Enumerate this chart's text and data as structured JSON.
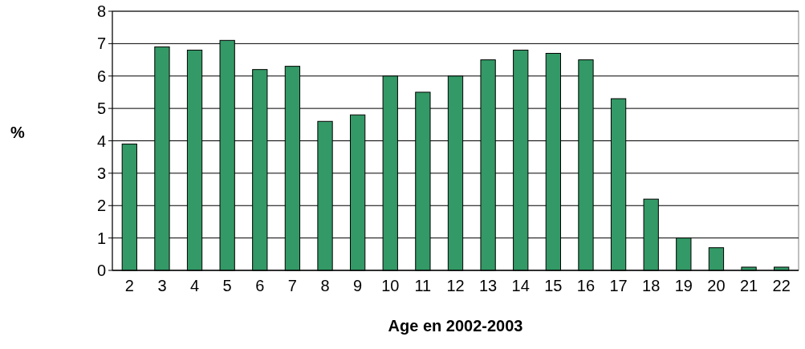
{
  "chart_data": {
    "type": "bar",
    "xlabel": "Age en 2002-2003",
    "ylabel": "%",
    "categories": [
      "2",
      "3",
      "4",
      "5",
      "6",
      "7",
      "8",
      "9",
      "10",
      "11",
      "12",
      "13",
      "14",
      "15",
      "16",
      "17",
      "18",
      "19",
      "20",
      "21",
      "22"
    ],
    "values": [
      3.9,
      6.9,
      6.8,
      7.1,
      6.2,
      6.3,
      4.6,
      4.8,
      6.0,
      5.5,
      6.0,
      6.5,
      6.8,
      6.7,
      6.5,
      5.3,
      2.2,
      1.0,
      0.7,
      0.1,
      0.1
    ],
    "color": "#339966",
    "ylim": [
      0,
      8
    ],
    "yticks": [
      0,
      1,
      2,
      3,
      4,
      5,
      6,
      7,
      8
    ],
    "grid": "y"
  }
}
